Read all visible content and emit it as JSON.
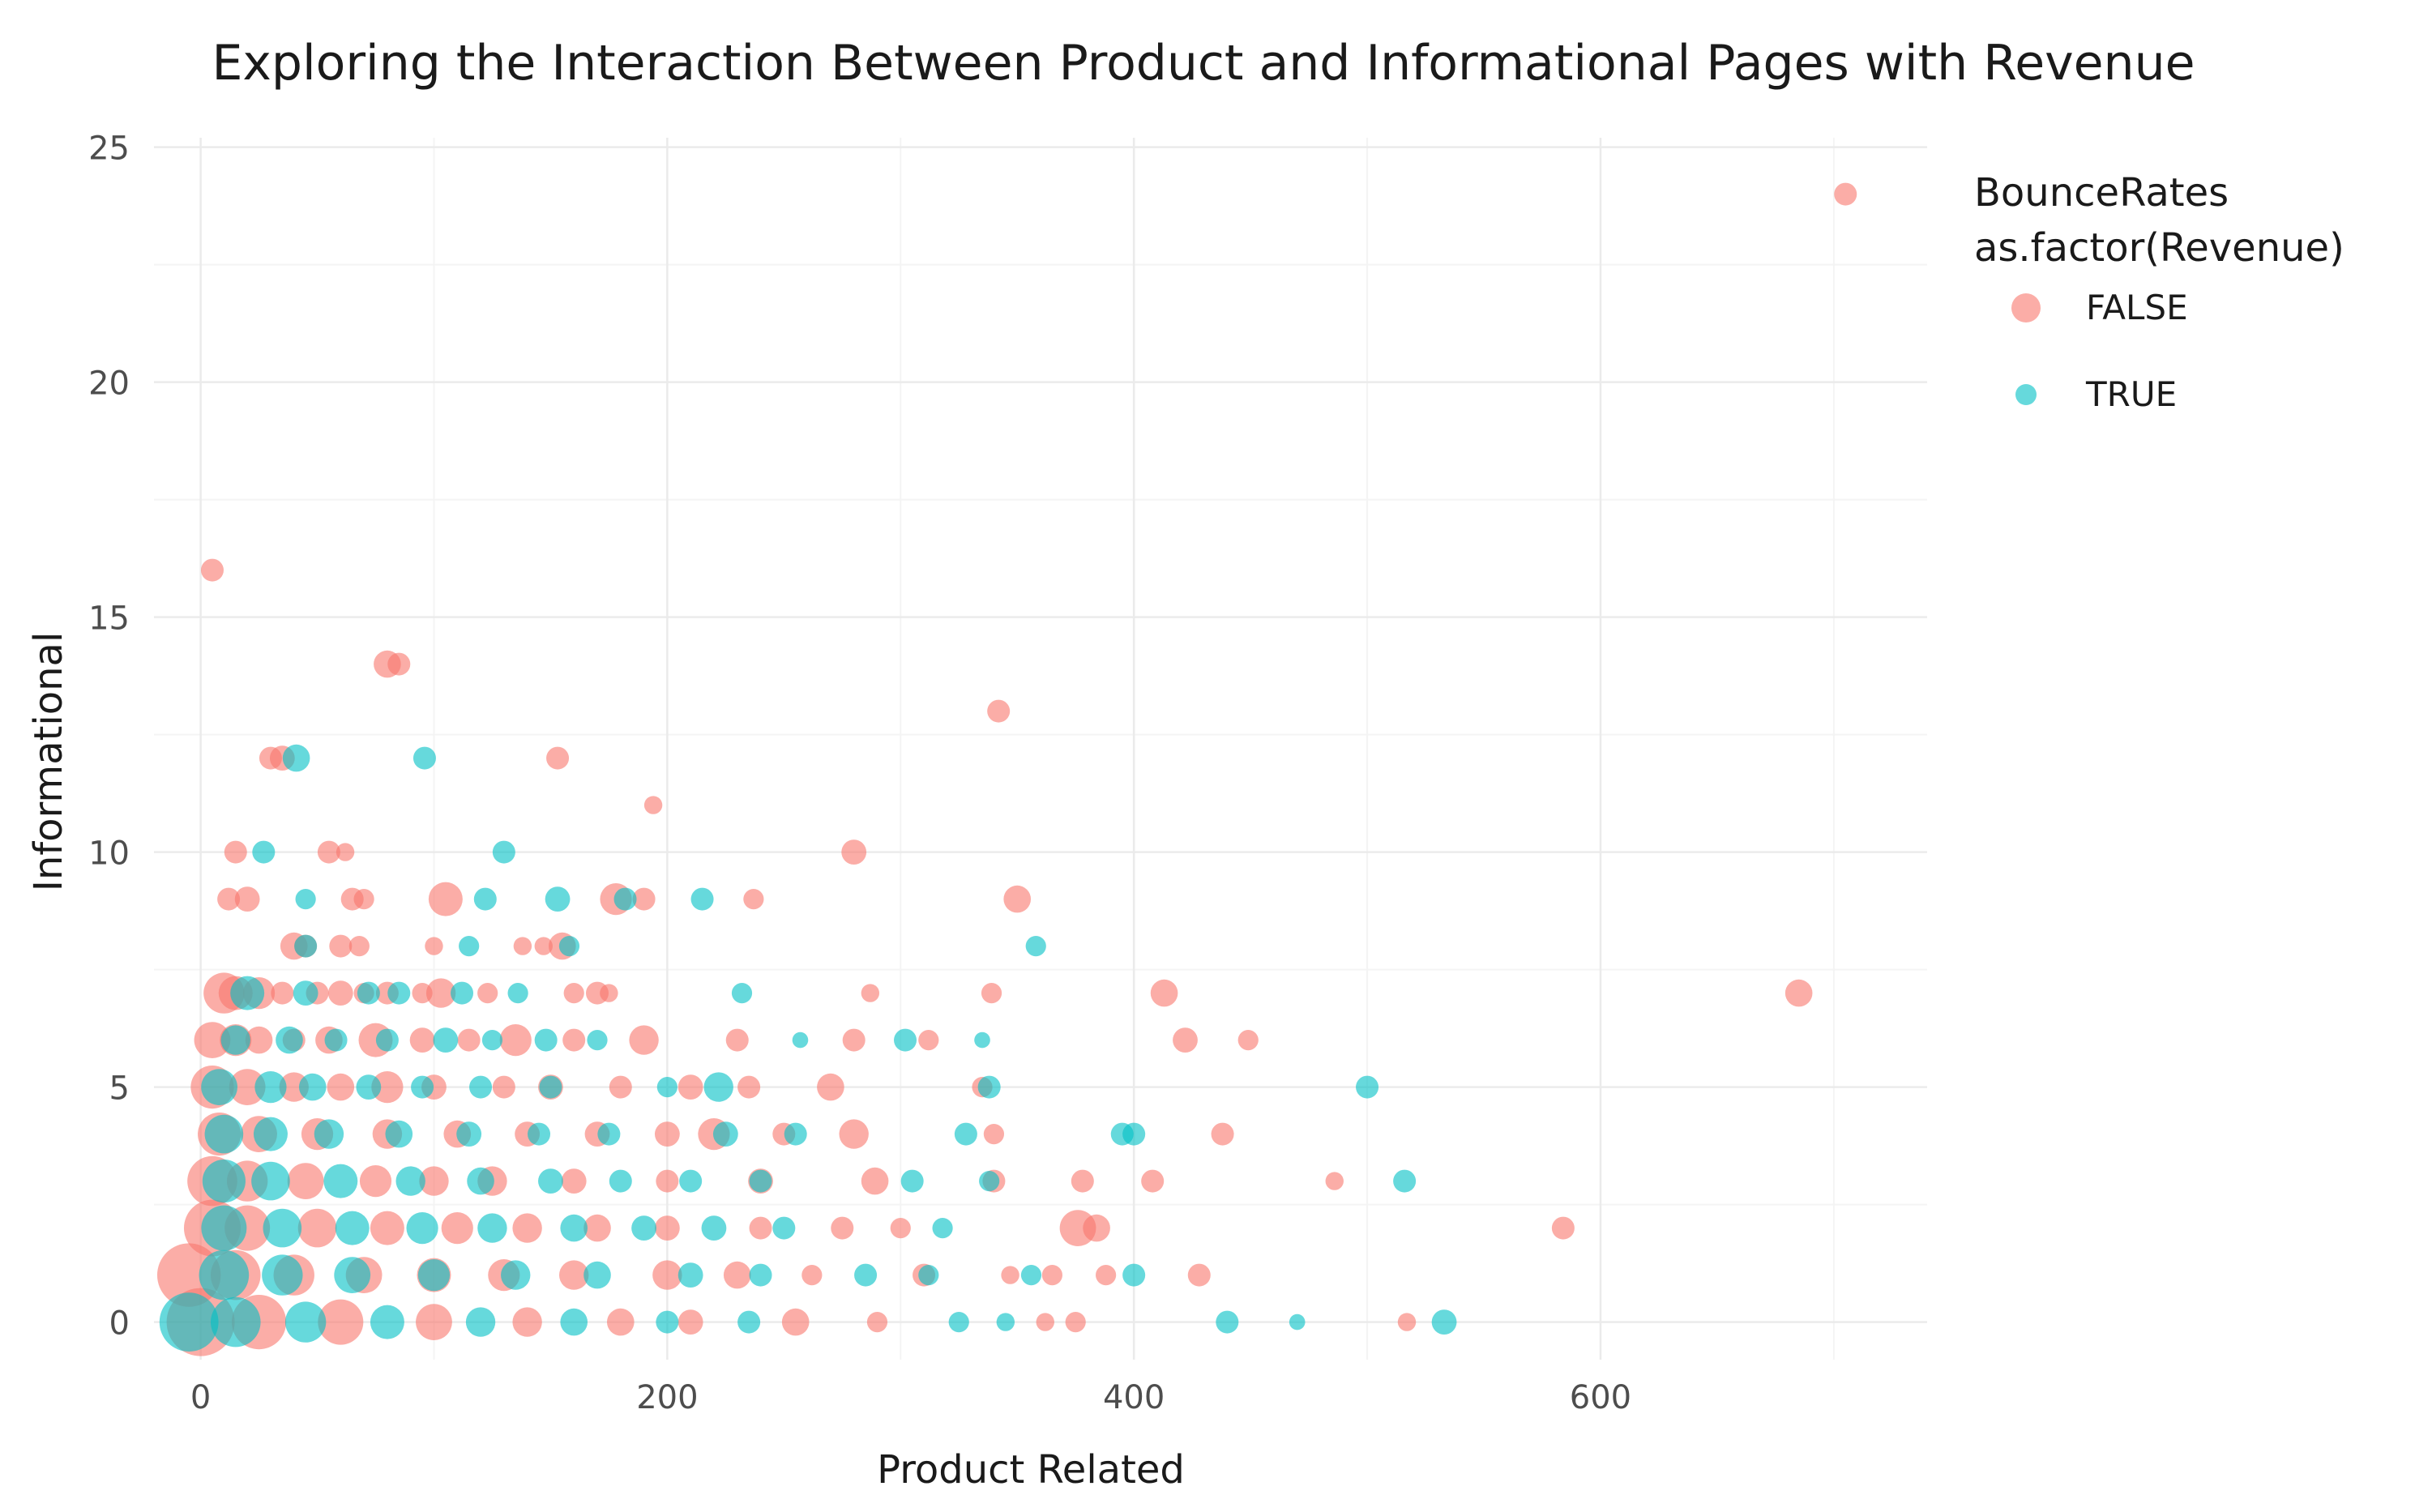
{
  "chart_data": {
    "type": "scatter",
    "title": "Exploring the Interaction Between Product and Informational Pages with Revenue",
    "xlabel": "Product Related",
    "ylabel": "Informational",
    "xlim": [
      -20,
      740
    ],
    "ylim": [
      -0.8,
      25.2
    ],
    "x_ticks": [
      0,
      200,
      400,
      600
    ],
    "y_ticks": [
      0,
      5,
      10,
      15,
      20,
      25
    ],
    "grid": true,
    "legend": {
      "position": "right",
      "title_line1": "BounceRates",
      "title_line2": "as.factor(Revenue)",
      "entries": [
        "FALSE",
        "TRUE"
      ]
    },
    "colors": {
      "FALSE": "#F8766D",
      "TRUE": "#00BFC4"
    },
    "series": [
      {
        "name": "FALSE",
        "points": [
          [
            705,
            24,
            1.0
          ],
          [
            5,
            16,
            1.0
          ],
          [
            80,
            14,
            1.2
          ],
          [
            85,
            14,
            1.0
          ],
          [
            342,
            13,
            1.0
          ],
          [
            30,
            12,
            1.0
          ],
          [
            35,
            12,
            1.1
          ],
          [
            153,
            12,
            1.0
          ],
          [
            194,
            11,
            0.8
          ],
          [
            15,
            10,
            1.0
          ],
          [
            55,
            10,
            1.0
          ],
          [
            62,
            10,
            0.8
          ],
          [
            280,
            10,
            1.1
          ],
          [
            12,
            9,
            1.0
          ],
          [
            20,
            9,
            1.1
          ],
          [
            65,
            9,
            1.0
          ],
          [
            70,
            9,
            0.9
          ],
          [
            105,
            9,
            1.5
          ],
          [
            178,
            9,
            1.4
          ],
          [
            190,
            9,
            1.0
          ],
          [
            237,
            9,
            0.9
          ],
          [
            350,
            9,
            1.2
          ],
          [
            40,
            8,
            1.2
          ],
          [
            45,
            8,
            1.0
          ],
          [
            60,
            8,
            1.0
          ],
          [
            68,
            8,
            0.9
          ],
          [
            100,
            8,
            0.8
          ],
          [
            138,
            8,
            0.8
          ],
          [
            147,
            8,
            0.8
          ],
          [
            155,
            8,
            1.2
          ],
          [
            10,
            7,
            1.8
          ],
          [
            15,
            7,
            1.5
          ],
          [
            25,
            7,
            1.4
          ],
          [
            35,
            7,
            1.0
          ],
          [
            50,
            7,
            1.0
          ],
          [
            60,
            7,
            1.1
          ],
          [
            70,
            7,
            0.9
          ],
          [
            80,
            7,
            1.0
          ],
          [
            95,
            7,
            0.9
          ],
          [
            103,
            7,
            1.3
          ],
          [
            123,
            7,
            0.9
          ],
          [
            160,
            7,
            0.9
          ],
          [
            170,
            7,
            1.0
          ],
          [
            175,
            7,
            0.8
          ],
          [
            287,
            7,
            0.8
          ],
          [
            339,
            7,
            0.9
          ],
          [
            413,
            7,
            1.2
          ],
          [
            685,
            7,
            1.2
          ],
          [
            5,
            6,
            1.6
          ],
          [
            15,
            6,
            1.4
          ],
          [
            25,
            6,
            1.2
          ],
          [
            40,
            6,
            1.0
          ],
          [
            55,
            6,
            1.2
          ],
          [
            75,
            6,
            1.5
          ],
          [
            95,
            6,
            1.1
          ],
          [
            115,
            6,
            1.0
          ],
          [
            135,
            6,
            1.4
          ],
          [
            160,
            6,
            1.0
          ],
          [
            190,
            6,
            1.3
          ],
          [
            230,
            6,
            1.0
          ],
          [
            280,
            6,
            1.0
          ],
          [
            312,
            6,
            0.9
          ],
          [
            422,
            6,
            1.1
          ],
          [
            449,
            6,
            0.9
          ],
          [
            5,
            5,
            1.9
          ],
          [
            20,
            5,
            1.6
          ],
          [
            40,
            5,
            1.3
          ],
          [
            60,
            5,
            1.2
          ],
          [
            80,
            5,
            1.4
          ],
          [
            100,
            5,
            1.1
          ],
          [
            130,
            5,
            1.0
          ],
          [
            150,
            5,
            1.1
          ],
          [
            180,
            5,
            1.0
          ],
          [
            210,
            5,
            1.1
          ],
          [
            235,
            5,
            1.0
          ],
          [
            270,
            5,
            1.2
          ],
          [
            335,
            5,
            0.9
          ],
          [
            8,
            4,
            1.9
          ],
          [
            25,
            4,
            1.6
          ],
          [
            50,
            4,
            1.4
          ],
          [
            80,
            4,
            1.3
          ],
          [
            110,
            4,
            1.2
          ],
          [
            140,
            4,
            1.1
          ],
          [
            170,
            4,
            1.1
          ],
          [
            200,
            4,
            1.1
          ],
          [
            220,
            4,
            1.4
          ],
          [
            250,
            4,
            1.0
          ],
          [
            280,
            4,
            1.3
          ],
          [
            340,
            4,
            0.9
          ],
          [
            438,
            4,
            1.0
          ],
          [
            5,
            3,
            2.2
          ],
          [
            20,
            3,
            1.8
          ],
          [
            45,
            3,
            1.6
          ],
          [
            75,
            3,
            1.4
          ],
          [
            100,
            3,
            1.3
          ],
          [
            125,
            3,
            1.3
          ],
          [
            160,
            3,
            1.1
          ],
          [
            200,
            3,
            1.0
          ],
          [
            240,
            3,
            1.1
          ],
          [
            289,
            3,
            1.2
          ],
          [
            340,
            3,
            1.0
          ],
          [
            378,
            3,
            1.0
          ],
          [
            408,
            3,
            1.0
          ],
          [
            486,
            3,
            0.8
          ],
          [
            5,
            2,
            2.5
          ],
          [
            20,
            2,
            2.0
          ],
          [
            50,
            2,
            1.7
          ],
          [
            80,
            2,
            1.5
          ],
          [
            110,
            2,
            1.4
          ],
          [
            140,
            2,
            1.3
          ],
          [
            170,
            2,
            1.2
          ],
          [
            200,
            2,
            1.1
          ],
          [
            240,
            2,
            1.0
          ],
          [
            275,
            2,
            1.0
          ],
          [
            300,
            2,
            0.9
          ],
          [
            376,
            2,
            1.6
          ],
          [
            384,
            2,
            1.2
          ],
          [
            584,
            2,
            1.0
          ],
          [
            -5,
            1,
            2.8
          ],
          [
            15,
            1,
            2.2
          ],
          [
            40,
            1,
            1.8
          ],
          [
            70,
            1,
            1.6
          ],
          [
            100,
            1,
            1.5
          ],
          [
            130,
            1,
            1.4
          ],
          [
            160,
            1,
            1.3
          ],
          [
            200,
            1,
            1.3
          ],
          [
            230,
            1,
            1.2
          ],
          [
            262,
            1,
            0.9
          ],
          [
            310,
            1,
            1.0
          ],
          [
            347,
            1,
            0.8
          ],
          [
            365,
            1,
            0.9
          ],
          [
            388,
            1,
            0.9
          ],
          [
            428,
            1,
            1.0
          ],
          [
            0,
            0,
            3.0
          ],
          [
            25,
            0,
            2.4
          ],
          [
            60,
            0,
            2.0
          ],
          [
            100,
            0,
            1.6
          ],
          [
            140,
            0,
            1.3
          ],
          [
            180,
            0,
            1.2
          ],
          [
            210,
            0,
            1.1
          ],
          [
            255,
            0,
            1.2
          ],
          [
            290,
            0,
            0.9
          ],
          [
            362,
            0,
            0.8
          ],
          [
            375,
            0,
            0.9
          ],
          [
            517,
            0,
            0.8
          ]
        ]
      },
      {
        "name": "TRUE",
        "points": [
          [
            41,
            12,
            1.2
          ],
          [
            96,
            12,
            1.0
          ],
          [
            27,
            10,
            1.0
          ],
          [
            130,
            10,
            1.0
          ],
          [
            45,
            9,
            0.9
          ],
          [
            122,
            9,
            1.0
          ],
          [
            153,
            9,
            1.1
          ],
          [
            182,
            9,
            1.0
          ],
          [
            215,
            9,
            1.0
          ],
          [
            45,
            8,
            1.0
          ],
          [
            115,
            8,
            0.9
          ],
          [
            158,
            8,
            0.9
          ],
          [
            358,
            8,
            0.9
          ],
          [
            20,
            7,
            1.5
          ],
          [
            45,
            7,
            1.1
          ],
          [
            72,
            7,
            1.0
          ],
          [
            85,
            7,
            1.0
          ],
          [
            112,
            7,
            1.0
          ],
          [
            136,
            7,
            0.9
          ],
          [
            232,
            7,
            0.9
          ],
          [
            15,
            6,
            1.3
          ],
          [
            38,
            6,
            1.2
          ],
          [
            58,
            6,
            1.0
          ],
          [
            80,
            6,
            1.0
          ],
          [
            105,
            6,
            1.1
          ],
          [
            125,
            6,
            0.9
          ],
          [
            148,
            6,
            1.0
          ],
          [
            170,
            6,
            0.9
          ],
          [
            257,
            6,
            0.7
          ],
          [
            302,
            6,
            1.0
          ],
          [
            335,
            6,
            0.7
          ],
          [
            8,
            5,
            1.6
          ],
          [
            30,
            5,
            1.4
          ],
          [
            48,
            5,
            1.2
          ],
          [
            72,
            5,
            1.1
          ],
          [
            95,
            5,
            1.0
          ],
          [
            120,
            5,
            1.0
          ],
          [
            150,
            5,
            1.0
          ],
          [
            200,
            5,
            0.9
          ],
          [
            222,
            5,
            1.3
          ],
          [
            338,
            5,
            1.0
          ],
          [
            500,
            5,
            1.0
          ],
          [
            10,
            4,
            1.7
          ],
          [
            30,
            4,
            1.5
          ],
          [
            55,
            4,
            1.3
          ],
          [
            85,
            4,
            1.2
          ],
          [
            115,
            4,
            1.1
          ],
          [
            145,
            4,
            1.0
          ],
          [
            175,
            4,
            1.0
          ],
          [
            225,
            4,
            1.1
          ],
          [
            255,
            4,
            1.0
          ],
          [
            328,
            4,
            1.0
          ],
          [
            395,
            4,
            1.0
          ],
          [
            400,
            4,
            1.0
          ],
          [
            10,
            3,
            1.9
          ],
          [
            30,
            3,
            1.7
          ],
          [
            60,
            3,
            1.5
          ],
          [
            90,
            3,
            1.3
          ],
          [
            120,
            3,
            1.2
          ],
          [
            150,
            3,
            1.1
          ],
          [
            180,
            3,
            1.0
          ],
          [
            210,
            3,
            1.0
          ],
          [
            240,
            3,
            1.0
          ],
          [
            305,
            3,
            1.0
          ],
          [
            338,
            3,
            0.9
          ],
          [
            516,
            3,
            1.0
          ],
          [
            10,
            2,
            2.0
          ],
          [
            35,
            2,
            1.7
          ],
          [
            65,
            2,
            1.5
          ],
          [
            95,
            2,
            1.4
          ],
          [
            125,
            2,
            1.3
          ],
          [
            160,
            2,
            1.2
          ],
          [
            190,
            2,
            1.1
          ],
          [
            220,
            2,
            1.1
          ],
          [
            250,
            2,
            1.0
          ],
          [
            318,
            2,
            0.9
          ],
          [
            10,
            1,
            2.2
          ],
          [
            35,
            1,
            1.8
          ],
          [
            65,
            1,
            1.6
          ],
          [
            100,
            1,
            1.4
          ],
          [
            135,
            1,
            1.3
          ],
          [
            170,
            1,
            1.2
          ],
          [
            210,
            1,
            1.1
          ],
          [
            240,
            1,
            1.0
          ],
          [
            285,
            1,
            1.0
          ],
          [
            312,
            1,
            0.9
          ],
          [
            356,
            1,
            0.9
          ],
          [
            400,
            1,
            1.0
          ],
          [
            -5,
            0,
            2.6
          ],
          [
            15,
            0,
            2.2
          ],
          [
            45,
            0,
            1.8
          ],
          [
            80,
            0,
            1.5
          ],
          [
            120,
            0,
            1.3
          ],
          [
            160,
            0,
            1.2
          ],
          [
            200,
            0,
            1.0
          ],
          [
            235,
            0,
            1.0
          ],
          [
            325,
            0,
            0.9
          ],
          [
            345,
            0,
            0.8
          ],
          [
            440,
            0,
            1.0
          ],
          [
            470,
            0,
            0.7
          ],
          [
            533,
            0,
            1.1
          ]
        ]
      }
    ]
  }
}
